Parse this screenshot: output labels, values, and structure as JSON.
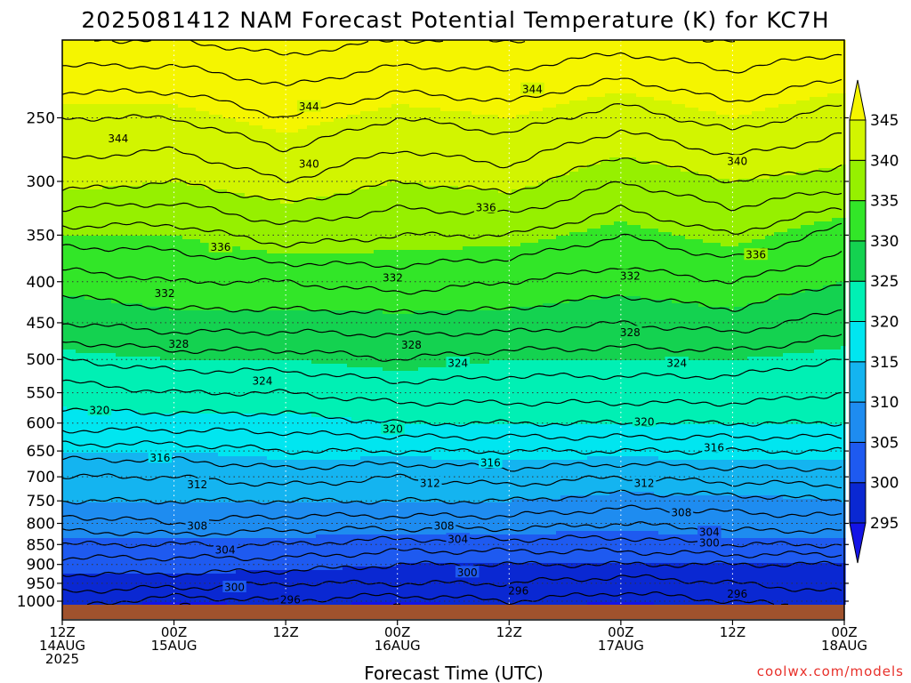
{
  "chart_data": {
    "type": "heatmap",
    "title": "2025081412 NAM Forecast Potential Temperature (K) for KC7H",
    "xlabel": "Forecast Time (UTC)",
    "ylabel": "",
    "credit": "coolwx.com/models",
    "x_ticks": [
      {
        "hour": 0,
        "lines": [
          "12Z",
          "14AUG",
          "2025"
        ]
      },
      {
        "hour": 12,
        "lines": [
          "00Z",
          "15AUG"
        ]
      },
      {
        "hour": 24,
        "lines": [
          "12Z"
        ]
      },
      {
        "hour": 36,
        "lines": [
          "00Z",
          "16AUG"
        ]
      },
      {
        "hour": 48,
        "lines": [
          "12Z"
        ]
      },
      {
        "hour": 60,
        "lines": [
          "00Z",
          "17AUG"
        ]
      },
      {
        "hour": 72,
        "lines": [
          "12Z"
        ]
      },
      {
        "hour": 84,
        "lines": [
          "00Z",
          "18AUG"
        ]
      }
    ],
    "xlim_hours": [
      0,
      84
    ],
    "y_axis": "pressure (hPa), log scale",
    "y_ticks": [
      250,
      300,
      350,
      400,
      450,
      500,
      550,
      600,
      650,
      700,
      750,
      800,
      850,
      900,
      950,
      1000
    ],
    "ylim": [
      1030,
      200
    ],
    "colorbar": {
      "levels": [
        295,
        300,
        305,
        310,
        315,
        320,
        325,
        330,
        335,
        340,
        345
      ],
      "labels": [
        "295",
        "300",
        "305",
        "310",
        "315",
        "320",
        "325",
        "330",
        "335",
        "340",
        "345"
      ],
      "colors": [
        "#1414e6",
        "#0a28d2",
        "#1e5af0",
        "#1e8cf0",
        "#14b4f0",
        "#00e6f0",
        "#00f0b4",
        "#14d250",
        "#32e628",
        "#96f000",
        "#d2f500",
        "#f5f500"
      ]
    },
    "theta_profiles": [
      {
        "hour": 0,
        "pressure_theta": [
          [
            1000,
            297
          ],
          [
            950,
            299
          ],
          [
            900,
            301
          ],
          [
            850,
            304
          ],
          [
            800,
            307
          ],
          [
            750,
            310
          ],
          [
            700,
            312
          ],
          [
            650,
            315
          ],
          [
            600,
            319
          ],
          [
            550,
            321
          ],
          [
            500,
            324
          ],
          [
            450,
            328
          ],
          [
            400,
            331
          ],
          [
            350,
            335
          ],
          [
            300,
            341
          ],
          [
            250,
            344
          ],
          [
            200,
            350
          ]
        ]
      },
      {
        "hour": 12,
        "pressure_theta": [
          [
            1000,
            295
          ],
          [
            950,
            299
          ],
          [
            900,
            301
          ],
          [
            850,
            304
          ],
          [
            800,
            308
          ],
          [
            750,
            310
          ],
          [
            700,
            312
          ],
          [
            650,
            315
          ],
          [
            600,
            319
          ],
          [
            550,
            322
          ],
          [
            500,
            325
          ],
          [
            450,
            329
          ],
          [
            400,
            332
          ],
          [
            350,
            335
          ],
          [
            300,
            340
          ],
          [
            250,
            344
          ],
          [
            200,
            350
          ]
        ]
      },
      {
        "hour": 24,
        "pressure_theta": [
          [
            1000,
            296
          ],
          [
            950,
            298
          ],
          [
            900,
            301
          ],
          [
            850,
            304
          ],
          [
            800,
            307
          ],
          [
            750,
            310
          ],
          [
            700,
            313
          ],
          [
            650,
            316
          ],
          [
            600,
            319
          ],
          [
            550,
            322
          ],
          [
            500,
            325
          ],
          [
            450,
            329
          ],
          [
            400,
            332
          ],
          [
            350,
            337
          ],
          [
            300,
            342
          ],
          [
            250,
            346
          ],
          [
            200,
            351
          ]
        ]
      },
      {
        "hour": 36,
        "pressure_theta": [
          [
            1000,
            295
          ],
          [
            950,
            298
          ],
          [
            900,
            300
          ],
          [
            850,
            303
          ],
          [
            800,
            307
          ],
          [
            750,
            310
          ],
          [
            700,
            312
          ],
          [
            650,
            316
          ],
          [
            600,
            320
          ],
          [
            550,
            323
          ],
          [
            500,
            326
          ],
          [
            450,
            329
          ],
          [
            400,
            333
          ],
          [
            350,
            336
          ],
          [
            300,
            340
          ],
          [
            250,
            344
          ],
          [
            200,
            350
          ]
        ]
      },
      {
        "hour": 48,
        "pressure_theta": [
          [
            1000,
            296
          ],
          [
            950,
            298
          ],
          [
            900,
            300
          ],
          [
            850,
            303
          ],
          [
            800,
            307
          ],
          [
            750,
            310
          ],
          [
            700,
            313
          ],
          [
            650,
            316
          ],
          [
            600,
            320
          ],
          [
            550,
            323
          ],
          [
            500,
            325
          ],
          [
            450,
            329
          ],
          [
            400,
            332
          ],
          [
            350,
            336
          ],
          [
            300,
            341
          ],
          [
            250,
            345
          ],
          [
            200,
            350
          ]
        ]
      },
      {
        "hour": 60,
        "pressure_theta": [
          [
            1000,
            295
          ],
          [
            950,
            297
          ],
          [
            900,
            300
          ],
          [
            850,
            303
          ],
          [
            800,
            306
          ],
          [
            750,
            309
          ],
          [
            700,
            312
          ],
          [
            650,
            316
          ],
          [
            600,
            320
          ],
          [
            550,
            323
          ],
          [
            500,
            325
          ],
          [
            450,
            328
          ],
          [
            400,
            331
          ],
          [
            350,
            334
          ],
          [
            300,
            338
          ],
          [
            250,
            343
          ],
          [
            200,
            349
          ]
        ]
      },
      {
        "hour": 72,
        "pressure_theta": [
          [
            1000,
            296
          ],
          [
            950,
            298
          ],
          [
            900,
            300
          ],
          [
            850,
            304
          ],
          [
            800,
            307
          ],
          [
            750,
            309
          ],
          [
            700,
            313
          ],
          [
            650,
            316
          ],
          [
            600,
            320
          ],
          [
            550,
            323
          ],
          [
            500,
            325
          ],
          [
            450,
            329
          ],
          [
            400,
            332
          ],
          [
            350,
            336
          ],
          [
            300,
            340
          ],
          [
            250,
            345
          ],
          [
            200,
            350
          ]
        ]
      },
      {
        "hour": 84,
        "pressure_theta": [
          [
            1000,
            297
          ],
          [
            950,
            299
          ],
          [
            900,
            300
          ],
          [
            850,
            304
          ],
          [
            800,
            307
          ],
          [
            750,
            310
          ],
          [
            700,
            313
          ],
          [
            650,
            316
          ],
          [
            600,
            320
          ],
          [
            550,
            322
          ],
          [
            500,
            324
          ],
          [
            450,
            327
          ],
          [
            400,
            330
          ],
          [
            350,
            333
          ],
          [
            300,
            339
          ],
          [
            250,
            343
          ],
          [
            200,
            349
          ]
        ]
      }
    ],
    "contour_interval": 2,
    "contour_labels": [
      {
        "value": "344",
        "hour": 6,
        "pressure": 265
      },
      {
        "value": "344",
        "hour": 26.5,
        "pressure": 242
      },
      {
        "value": "344",
        "hour": 50.5,
        "pressure": 230
      },
      {
        "value": "340",
        "hour": 26.5,
        "pressure": 285
      },
      {
        "value": "340",
        "hour": 72.5,
        "pressure": 283
      },
      {
        "value": "336",
        "hour": 17,
        "pressure": 362
      },
      {
        "value": "336",
        "hour": 45.5,
        "pressure": 323
      },
      {
        "value": "336",
        "hour": 74.5,
        "pressure": 370
      },
      {
        "value": "332",
        "hour": 11,
        "pressure": 413
      },
      {
        "value": "332",
        "hour": 35.5,
        "pressure": 395
      },
      {
        "value": "332",
        "hour": 61,
        "pressure": 393
      },
      {
        "value": "328",
        "hour": 12.5,
        "pressure": 478
      },
      {
        "value": "328",
        "hour": 37.5,
        "pressure": 479
      },
      {
        "value": "328",
        "hour": 61,
        "pressure": 462
      },
      {
        "value": "324",
        "hour": 21.5,
        "pressure": 531
      },
      {
        "value": "324",
        "hour": 42.5,
        "pressure": 505
      },
      {
        "value": "324",
        "hour": 66,
        "pressure": 505
      },
      {
        "value": "320",
        "hour": 4,
        "pressure": 578
      },
      {
        "value": "320",
        "hour": 35.5,
        "pressure": 610
      },
      {
        "value": "320",
        "hour": 62.5,
        "pressure": 597
      },
      {
        "value": "316",
        "hour": 10.5,
        "pressure": 662
      },
      {
        "value": "316",
        "hour": 46,
        "pressure": 672
      },
      {
        "value": "316",
        "hour": 70,
        "pressure": 643
      },
      {
        "value": "312",
        "hour": 14.5,
        "pressure": 715
      },
      {
        "value": "312",
        "hour": 39.5,
        "pressure": 712
      },
      {
        "value": "312",
        "hour": 62.5,
        "pressure": 712
      },
      {
        "value": "308",
        "hour": 14.5,
        "pressure": 805
      },
      {
        "value": "308",
        "hour": 41,
        "pressure": 805
      },
      {
        "value": "308",
        "hour": 66.5,
        "pressure": 775
      },
      {
        "value": "304",
        "hour": 17.5,
        "pressure": 862
      },
      {
        "value": "304",
        "hour": 42.5,
        "pressure": 837
      },
      {
        "value": "304",
        "hour": 69.5,
        "pressure": 820
      },
      {
        "value": "300",
        "hour": 18.5,
        "pressure": 960
      },
      {
        "value": "300",
        "hour": 43.5,
        "pressure": 920
      },
      {
        "value": "300",
        "hour": 69.5,
        "pressure": 845
      },
      {
        "value": "296",
        "hour": 24.5,
        "pressure": 995
      },
      {
        "value": "296",
        "hour": 49,
        "pressure": 970
      },
      {
        "value": "296",
        "hour": 72.5,
        "pressure": 978
      }
    ],
    "ground_color": "#a0522d"
  }
}
